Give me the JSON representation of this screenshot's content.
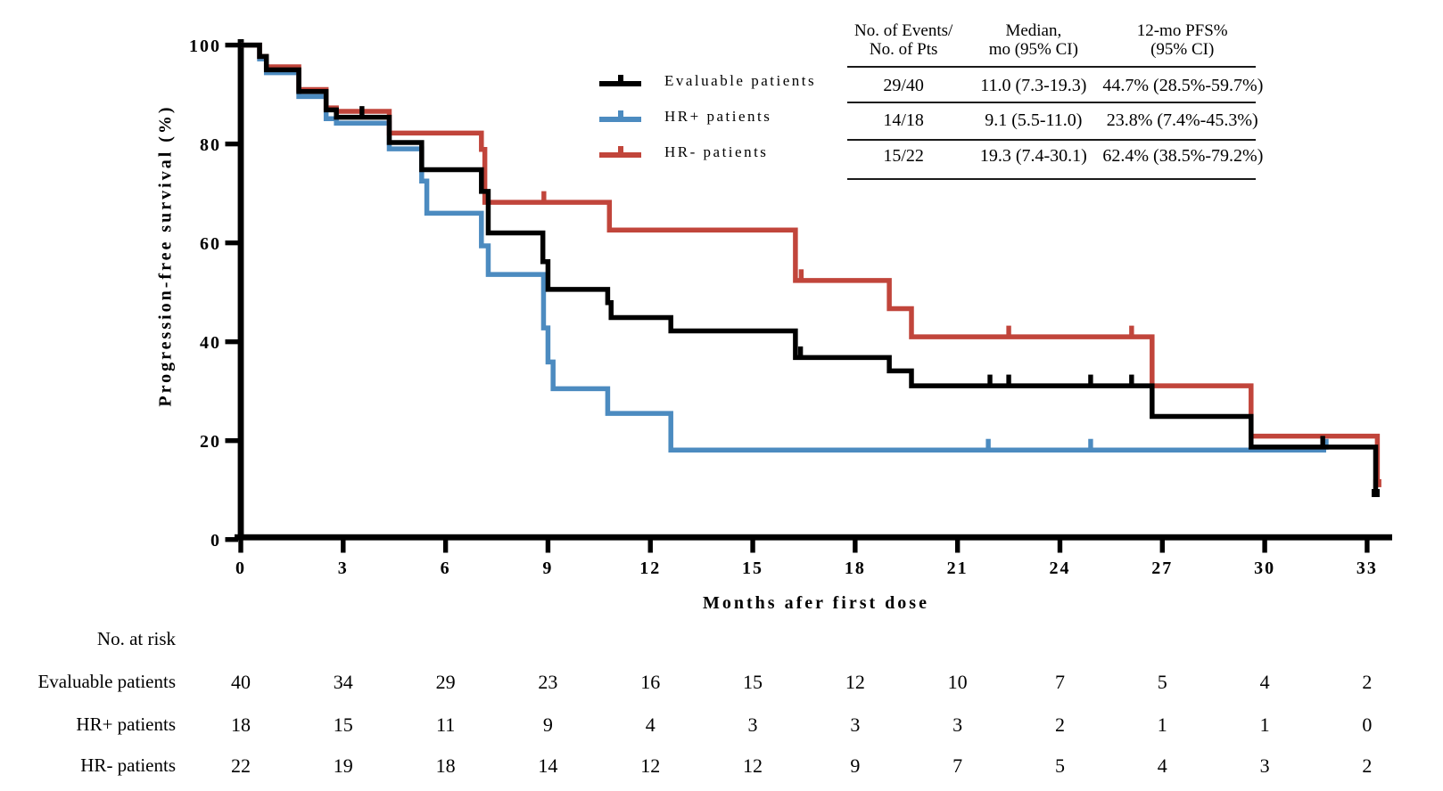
{
  "axes": {
    "x": {
      "title": "Months afer first dose",
      "ticks": [
        0,
        3,
        6,
        9,
        12,
        15,
        18,
        21,
        24,
        27,
        30,
        33
      ],
      "range": [
        0,
        34.7
      ]
    },
    "y": {
      "title": "Progression-free survival (%)",
      "ticks": [
        0,
        20,
        40,
        60,
        80,
        100
      ],
      "range": [
        0,
        100
      ]
    }
  },
  "chart_data": {
    "type": "line",
    "subtype": "kaplan-meier-step",
    "title": "",
    "xlabel": "Months afer first dose",
    "ylabel": "Progression-free survival (%)",
    "xlim": [
      0,
      34.7
    ],
    "ylim": [
      0,
      100
    ],
    "grid": false,
    "legend_position": "upper-center-left",
    "series": [
      {
        "name": "HR+ patients",
        "color": "#4c8bc0",
        "steps": [
          [
            0,
            100
          ],
          [
            0.55,
            97.2
          ],
          [
            0.75,
            94.4
          ],
          [
            1.7,
            89.6
          ],
          [
            2.5,
            85.1
          ],
          [
            2.8,
            84.2
          ],
          [
            4.35,
            79.0
          ],
          [
            5.3,
            72.5
          ],
          [
            5.45,
            66.0
          ],
          [
            7.05,
            59.4
          ],
          [
            7.25,
            53.6
          ],
          [
            8.87,
            42.8
          ],
          [
            9.0,
            35.9
          ],
          [
            9.15,
            30.5
          ],
          [
            10.75,
            25.5
          ],
          [
            12.6,
            18.1
          ],
          [
            31.8,
            18.1
          ]
        ],
        "censors": [
          [
            21.9,
            18.1
          ],
          [
            24.9,
            18.1
          ],
          [
            31.8,
            18.1
          ]
        ],
        "ends": []
      },
      {
        "name": "HR- patients",
        "color": "#c1453b",
        "steps": [
          [
            0,
            100
          ],
          [
            0.55,
            97.7
          ],
          [
            0.75,
            95.6
          ],
          [
            1.7,
            91.0
          ],
          [
            2.5,
            87.3
          ],
          [
            2.8,
            86.6
          ],
          [
            4.35,
            82.2
          ],
          [
            7.05,
            78.9
          ],
          [
            7.15,
            68.2
          ],
          [
            10.8,
            62.6
          ],
          [
            16.25,
            52.4
          ],
          [
            19.0,
            46.7
          ],
          [
            19.65,
            41.0
          ],
          [
            26.7,
            31.1
          ],
          [
            29.6,
            20.9
          ],
          [
            33.3,
            11.4
          ]
        ],
        "censors": [
          [
            8.88,
            68.2
          ],
          [
            16.42,
            52.4
          ],
          [
            22.5,
            41.0
          ],
          [
            26.1,
            41.0
          ]
        ],
        "ends": [
          [
            33.3,
            11.4
          ]
        ]
      },
      {
        "name": "Evaluable patients",
        "color": "#000000",
        "steps": [
          [
            0,
            100
          ],
          [
            0.55,
            97.7
          ],
          [
            0.75,
            95.0
          ],
          [
            1.7,
            90.6
          ],
          [
            2.5,
            86.9
          ],
          [
            2.8,
            85.4
          ],
          [
            4.35,
            80.3
          ],
          [
            5.3,
            74.8
          ],
          [
            7.05,
            70.4
          ],
          [
            7.25,
            62.0
          ],
          [
            8.85,
            56.2
          ],
          [
            9.0,
            50.6
          ],
          [
            10.75,
            47.9
          ],
          [
            10.85,
            44.9
          ],
          [
            12.6,
            42.2
          ],
          [
            16.25,
            36.8
          ],
          [
            19.0,
            34.1
          ],
          [
            19.65,
            31.1
          ],
          [
            26.7,
            24.9
          ],
          [
            29.6,
            18.7
          ],
          [
            33.25,
            9.4
          ]
        ],
        "censors": [
          [
            3.55,
            85.4
          ],
          [
            16.4,
            36.8
          ],
          [
            21.95,
            31.1
          ],
          [
            22.5,
            31.1
          ],
          [
            24.9,
            31.1
          ],
          [
            26.1,
            31.1
          ],
          [
            31.7,
            18.7
          ]
        ],
        "ends": [
          [
            33.25,
            9.4
          ]
        ]
      }
    ]
  },
  "legend": {
    "items": [
      {
        "label": "Evaluable patients",
        "color": "#000000"
      },
      {
        "label": "HR+ patients",
        "color": "#4c8bc0"
      },
      {
        "label": "HR- patients",
        "color": "#c1453b"
      }
    ]
  },
  "stats_table": {
    "columns": [
      {
        "line1": "No. of Events/",
        "line2": "No. of Pts"
      },
      {
        "line1": "Median,",
        "line2": "mo (95% CI)"
      },
      {
        "line1": "12-mo PFS%",
        "line2": "(95% CI)"
      }
    ],
    "rows": [
      [
        "29/40",
        "11.0 (7.3-19.3)",
        "44.7% (28.5%-59.7%)"
      ],
      [
        "14/18",
        "9.1 (5.5-11.0)",
        "23.8% (7.4%-45.3%)"
      ],
      [
        "15/22",
        "19.3 (7.4-30.1)",
        "62.4% (38.5%-79.2%)"
      ]
    ]
  },
  "at_risk": {
    "title": "No. at risk",
    "months": [
      0,
      3,
      6,
      9,
      12,
      15,
      18,
      21,
      24,
      27,
      30,
      33
    ],
    "rows": [
      {
        "label": "Evaluable patients",
        "counts": [
          40,
          34,
          29,
          23,
          16,
          15,
          12,
          10,
          7,
          5,
          4,
          2
        ]
      },
      {
        "label": "HR+ patients",
        "counts": [
          18,
          15,
          11,
          9,
          4,
          3,
          3,
          3,
          2,
          1,
          1,
          0
        ]
      },
      {
        "label": "HR- patients",
        "counts": [
          22,
          19,
          18,
          14,
          12,
          12,
          9,
          7,
          5,
          4,
          3,
          2
        ]
      }
    ]
  }
}
